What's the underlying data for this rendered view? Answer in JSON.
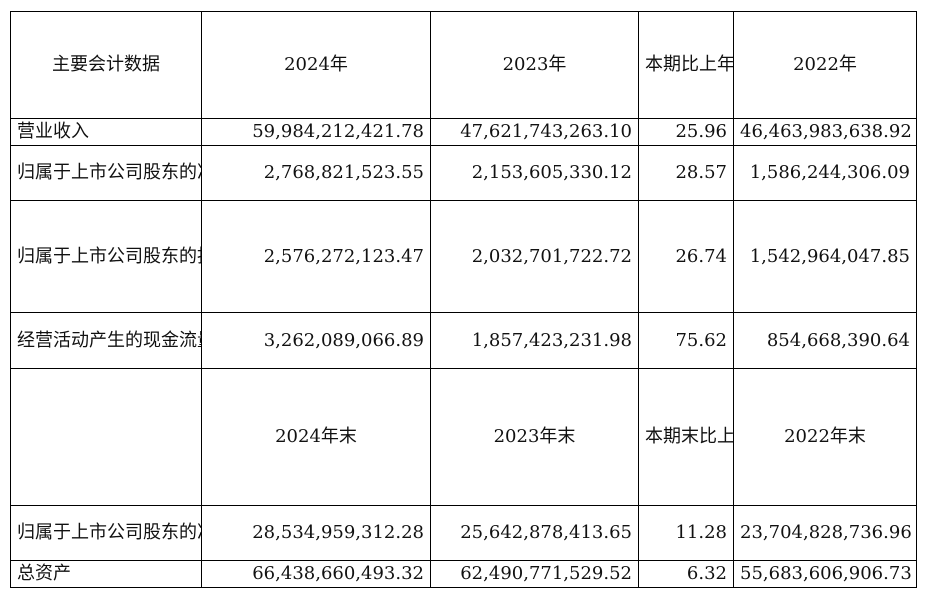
{
  "header": {
    "label": "主要会计数据",
    "col1": "2024年",
    "col2": "2023年",
    "pct": "本期比上年同期增减(%)",
    "col3": "2022年"
  },
  "header2": {
    "label": "",
    "col1": "2024年末",
    "col2": "2023年末",
    "pct": "本期末比上年同期末增减（%）",
    "col3": "2022年末"
  },
  "rows": [
    {
      "label": "营业收入",
      "v2024": "59,984,212,421.78",
      "v2023": "47,621,743,263.10",
      "pct": "25.96",
      "v2022": "46,463,983,638.92"
    },
    {
      "label": "归属于上市公司股东的净利润",
      "v2024": "2,768,821,523.55",
      "v2023": "2,153,605,330.12",
      "pct": "28.57",
      "v2022": "1,586,244,306.09"
    },
    {
      "label": "归属于上市公司股东的扣除非经常性损益的净利润",
      "v2024": "2,576,272,123.47",
      "v2023": "2,032,701,722.72",
      "pct": "26.74",
      "v2022": "1,542,964,047.85"
    },
    {
      "label": "经营活动产生的现金流量净额",
      "v2024": "3,262,089,066.89",
      "v2023": "1,857,423,231.98",
      "pct": "75.62",
      "v2022": "854,668,390.64"
    }
  ],
  "rows2": [
    {
      "label": "归属于上市公司股东的净资产",
      "v2024": "28,534,959,312.28",
      "v2023": "25,642,878,413.65",
      "pct": "11.28",
      "v2022": "23,704,828,736.96"
    },
    {
      "label": "总资产",
      "v2024": "66,438,660,493.32",
      "v2023": "62,490,771,529.52",
      "pct": "6.32",
      "v2022": "55,683,606,906.73"
    }
  ]
}
